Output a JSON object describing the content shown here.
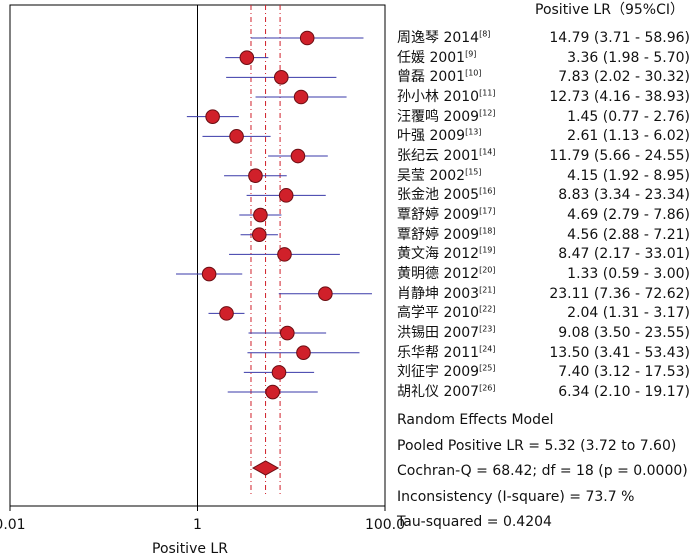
{
  "chart_data": {
    "type": "forest",
    "header": "Positive LR（95%CI）",
    "xlabel": "Positive LR",
    "x_scale": "log",
    "xlim": [
      0.01,
      100
    ],
    "x_ticks": [
      {
        "value": 0.01,
        "label": "0.01"
      },
      {
        "value": 1,
        "label": "1"
      },
      {
        "value": 100,
        "label": "100.0"
      }
    ],
    "reference_line": 1,
    "studies": [
      {
        "name": "周逸琴 2014",
        "ref": "[8]",
        "lr": 14.79,
        "lo": 3.71,
        "hi": 58.96,
        "text": "14.79 (3.71 - 58.96)"
      },
      {
        "name": "任媛 2001",
        "ref": "[9]",
        "lr": 3.36,
        "lo": 1.98,
        "hi": 5.7,
        "text": "3.36 (1.98 - 5.70)"
      },
      {
        "name": "曾磊 2001",
        "ref": "[10]",
        "lr": 7.83,
        "lo": 2.02,
        "hi": 30.32,
        "text": "7.83 (2.02 - 30.32)"
      },
      {
        "name": "孙小林 2010",
        "ref": "[11]",
        "lr": 12.73,
        "lo": 4.16,
        "hi": 38.93,
        "text": "12.73 (4.16 - 38.93)"
      },
      {
        "name": "汪覆鸣 2009",
        "ref": "[12]",
        "lr": 1.45,
        "lo": 0.77,
        "hi": 2.76,
        "text": "1.45 (0.77 - 2.76)"
      },
      {
        "name": "叶强 2009",
        "ref": "[13]",
        "lr": 2.61,
        "lo": 1.13,
        "hi": 6.02,
        "text": "2.61 (1.13 - 6.02)"
      },
      {
        "name": "张纪云 2001",
        "ref": "[14]",
        "lr": 11.79,
        "lo": 5.66,
        "hi": 24.55,
        "text": "11.79 (5.66 - 24.55)"
      },
      {
        "name": "吴莹 2002",
        "ref": "[15]",
        "lr": 4.15,
        "lo": 1.92,
        "hi": 8.95,
        "text": "4.15 (1.92 - 8.95)"
      },
      {
        "name": "张金池 2005",
        "ref": "[16]",
        "lr": 8.83,
        "lo": 3.34,
        "hi": 23.34,
        "text": "8.83 (3.34 - 23.34)"
      },
      {
        "name": "覃舒婷 2009",
        "ref": "[17]",
        "lr": 4.69,
        "lo": 2.79,
        "hi": 7.86,
        "text": "4.69 (2.79 - 7.86)"
      },
      {
        "name": "覃舒婷 2009",
        "ref": "[18]",
        "lr": 4.56,
        "lo": 2.88,
        "hi": 7.21,
        "text": "4.56 (2.88 - 7.21)"
      },
      {
        "name": "黄文海 2012",
        "ref": "[19]",
        "lr": 8.47,
        "lo": 2.17,
        "hi": 33.01,
        "text": "8.47 (2.17 - 33.01)"
      },
      {
        "name": "黄明德 2012",
        "ref": "[20]",
        "lr": 1.33,
        "lo": 0.59,
        "hi": 3.0,
        "text": "1.33 (0.59 - 3.00)"
      },
      {
        "name": "肖静坤 2003",
        "ref": "[21]",
        "lr": 23.11,
        "lo": 7.36,
        "hi": 72.62,
        "text": "23.11 (7.36 - 72.62)"
      },
      {
        "name": "高学平 2010",
        "ref": "[22]",
        "lr": 2.04,
        "lo": 1.31,
        "hi": 3.17,
        "text": "2.04 (1.31 - 3.17)"
      },
      {
        "name": "洪锡田 2007",
        "ref": "[23]",
        "lr": 9.08,
        "lo": 3.5,
        "hi": 23.55,
        "text": "9.08 (3.50 - 23.55)"
      },
      {
        "name": "乐华帮 2011",
        "ref": "[24]",
        "lr": 13.5,
        "lo": 3.41,
        "hi": 53.43,
        "text": "13.50 (3.41 - 53.43)"
      },
      {
        "name": "刘征宇 2009",
        "ref": "[25]",
        "lr": 7.4,
        "lo": 3.12,
        "hi": 17.53,
        "text": "7.40 (3.12 - 17.53)"
      },
      {
        "name": "胡礼仪 2007",
        "ref": "[26]",
        "lr": 6.34,
        "lo": 2.1,
        "hi": 19.17,
        "text": "6.34 (2.10 - 19.17)"
      }
    ],
    "pooled": {
      "lr": 5.32,
      "lo": 3.72,
      "hi": 7.6
    },
    "summary_lines": [
      "Random Effects Model",
      "Pooled Positive LR = 5.32 (3.72 to 7.60)",
      "Cochran-Q = 68.42; df = 18 (p = 0.0000)",
      "Inconsistency (I-square) = 73.7 %",
      "Tau-squared = 0.4204"
    ],
    "colors": {
      "point": "#d0202a",
      "ci": "#3a3aa8",
      "pooled_lines": "#d0202a",
      "axis": "#000000"
    }
  }
}
